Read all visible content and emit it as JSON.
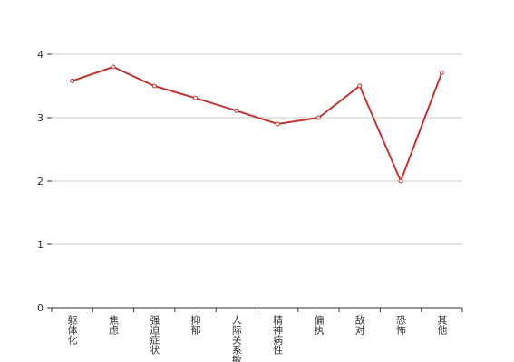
{
  "chart_data": {
    "type": "line",
    "categories": [
      "躯体化",
      "焦虑",
      "强迫症状",
      "抑郁",
      "人际关系敏感",
      "精神病性",
      "偏执",
      "敌对",
      "恐怖",
      "其他"
    ],
    "series": [
      {
        "color": "#c23531",
        "values": [
          3.58,
          3.8,
          3.5,
          3.31,
          3.11,
          2.9,
          3.0,
          3.5,
          2.0,
          3.71
        ]
      }
    ],
    "ylim": [
      0,
      4
    ],
    "yticks": [
      0,
      1,
      2,
      3,
      4
    ],
    "grid": true
  }
}
